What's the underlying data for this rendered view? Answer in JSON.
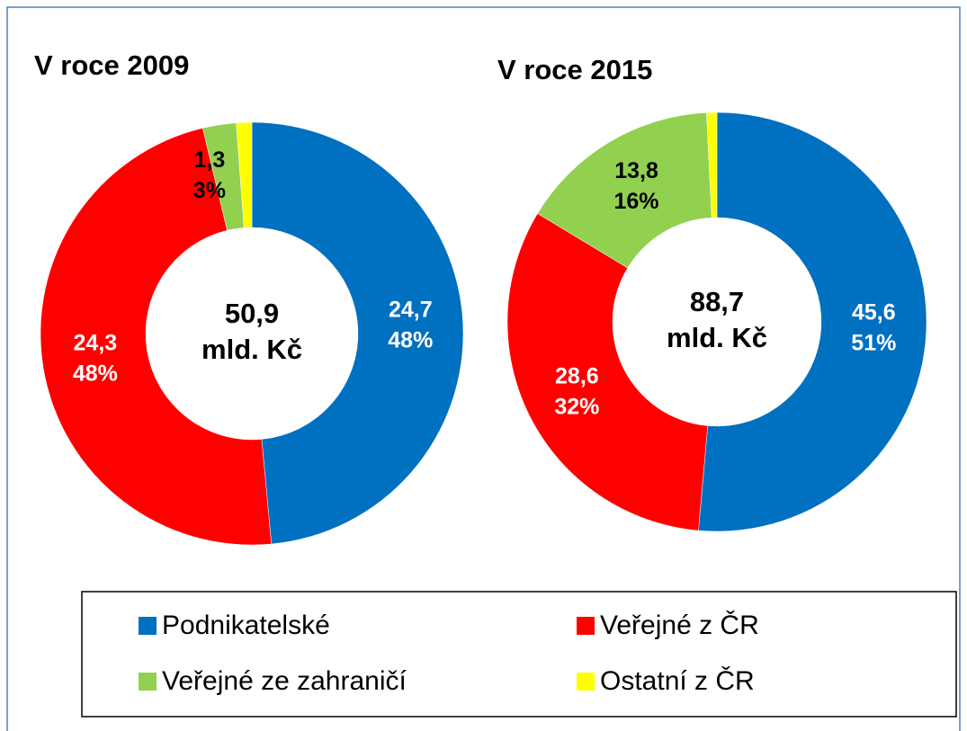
{
  "chart_data": [
    {
      "type": "pie",
      "title": "V roce 2009",
      "values": [
        24.7,
        24.3,
        1.3,
        0.6
      ],
      "value_labels": [
        "24,7",
        "24,3",
        "1,3",
        null
      ],
      "percents": [
        48,
        48,
        3,
        null
      ],
      "percent_labels": [
        "48%",
        "48%",
        "3%",
        null
      ],
      "total": 50.9,
      "total_label": "50,9",
      "unit": "mld. Kč"
    },
    {
      "type": "pie",
      "title": "V roce 2015",
      "values": [
        45.6,
        28.6,
        13.8,
        0.7
      ],
      "value_labels": [
        "45,6",
        "28,6",
        "13,8",
        null
      ],
      "percents": [
        51,
        32,
        16,
        null
      ],
      "percent_labels": [
        "51%",
        "32%",
        "16%",
        null
      ],
      "total": 88.7,
      "total_label": "88,7",
      "unit": "mld. Kč"
    }
  ],
  "legend": [
    {
      "name": "Podnikatelské",
      "color": "#0070c0",
      "label_color": "#ffffff"
    },
    {
      "name": "Veřejné z ČR",
      "color": "#ff0000",
      "label_color": "#ffffff"
    },
    {
      "name": "Veřejné ze zahraničí",
      "color": "#92d050",
      "label_color": "#000000"
    },
    {
      "name": "Ostatní z ČR",
      "color": "#ffff00",
      "label_color": "#000000"
    }
  ]
}
